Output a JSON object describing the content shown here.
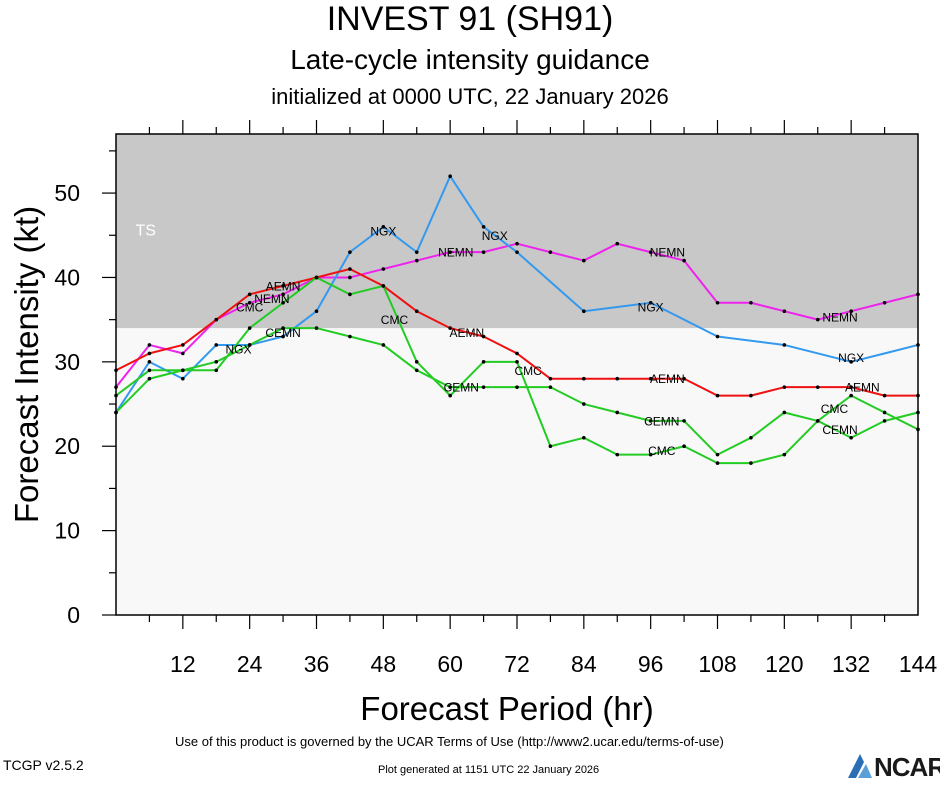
{
  "title": "INVEST 91 (SH91)",
  "subtitle": "Late-cycle intensity guidance",
  "init_line": "initialized at 0000 UTC, 22 January 2026",
  "footer": {
    "terms": "Use of this product is governed by the UCAR Terms of Use (http://www2.ucar.edu/terms-of-use)",
    "generated": "Plot generated at 1151 UTC   22 January 2026",
    "version": "TCGP v2.5.2",
    "logo_text": "NCAR"
  },
  "chart_data": {
    "type": "line",
    "title": "INVEST 91 (SH91)",
    "xlabel": "Forecast Period (hr)",
    "ylabel": "Forecast Intensity (kt)",
    "xlim": [
      0,
      144
    ],
    "ylim": [
      0,
      57
    ],
    "xticks": [
      12,
      24,
      36,
      48,
      60,
      72,
      84,
      96,
      108,
      120,
      132,
      144
    ],
    "yticks": [
      0,
      10,
      20,
      30,
      40,
      50
    ],
    "threshold_band": {
      "label": "TS",
      "from": 34,
      "to": 57,
      "color": "#c8c8c8"
    },
    "below_band_color": "#f8f8f8",
    "series": [
      {
        "name": "NEMN",
        "color": "#ee22ee",
        "x": [
          0,
          6,
          12,
          18,
          24,
          30,
          36,
          42,
          48,
          54,
          60,
          66,
          72,
          78,
          84,
          90,
          96,
          102,
          108,
          114,
          120,
          126,
          132,
          138,
          144
        ],
        "y": [
          27,
          32,
          31,
          35,
          37,
          38,
          40,
          40,
          41,
          42,
          43,
          43,
          44,
          43,
          42,
          44,
          43,
          42,
          37,
          37,
          36,
          35,
          36,
          37,
          38
        ]
      },
      {
        "name": "NGX",
        "color": "#3399ee",
        "x": [
          0,
          6,
          12,
          18,
          24,
          30,
          36,
          42,
          48,
          54,
          60,
          66,
          72,
          84,
          96,
          108,
          120,
          132,
          144
        ],
        "y": [
          24,
          30,
          28,
          32,
          32,
          33,
          36,
          43,
          46,
          43,
          52,
          46,
          43,
          36,
          37,
          33,
          32,
          30,
          32
        ]
      },
      {
        "name": "AEMN",
        "color": "#ee1111",
        "x": [
          0,
          6,
          12,
          18,
          24,
          30,
          36,
          42,
          48,
          54,
          60,
          66,
          72,
          78,
          84,
          90,
          96,
          102,
          108,
          114,
          120,
          126,
          132,
          138,
          144
        ],
        "y": [
          29,
          31,
          32,
          35,
          38,
          39,
          40,
          41,
          39,
          36,
          34,
          33,
          31,
          28,
          28,
          28,
          28,
          28,
          26,
          26,
          27,
          27,
          27,
          26,
          26
        ]
      },
      {
        "name": "CMC",
        "color": "#22cc22",
        "x": [
          0,
          6,
          12,
          18,
          24,
          30,
          36,
          42,
          48,
          54,
          60,
          66,
          72,
          78,
          84,
          90,
          96,
          102,
          108,
          114,
          120,
          126,
          132,
          138,
          144
        ],
        "y": [
          26,
          29,
          29,
          29,
          34,
          37,
          40,
          38,
          39,
          30,
          26,
          30,
          30,
          20,
          21,
          19,
          19,
          20,
          18,
          18,
          19,
          23,
          26,
          24,
          22
        ]
      },
      {
        "name": "CEMN",
        "color": "#22cc22",
        "x": [
          0,
          6,
          12,
          18,
          24,
          30,
          36,
          42,
          48,
          54,
          60,
          66,
          72,
          78,
          84,
          90,
          96,
          102,
          108,
          114,
          120,
          126,
          132,
          138,
          144
        ],
        "y": [
          24,
          28,
          29,
          30,
          32,
          34,
          34,
          33,
          32,
          29,
          27,
          27,
          27,
          27,
          25,
          24,
          23,
          23,
          19,
          21,
          24,
          23,
          21,
          23,
          24
        ]
      }
    ],
    "series_labels": [
      {
        "text": "NGX",
        "series": 1,
        "x": 48,
        "y": 45.5
      },
      {
        "text": "NGX",
        "series": 1,
        "x": 68,
        "y": 45
      },
      {
        "text": "NGX",
        "series": 1,
        "x": 96,
        "y": 36.5
      },
      {
        "text": "NGX",
        "series": 1,
        "x": 132,
        "y": 30.5
      },
      {
        "text": "NGX",
        "series": 1,
        "x": 22,
        "y": 31.5
      },
      {
        "text": "NEMN",
        "series": 0,
        "x": 61,
        "y": 43
      },
      {
        "text": "NEMN",
        "series": 0,
        "x": 99,
        "y": 43
      },
      {
        "text": "NEMN",
        "series": 0,
        "x": 130,
        "y": 35.3
      },
      {
        "text": "NEMN",
        "series": 0,
        "x": 28,
        "y": 37.5
      },
      {
        "text": "AEMN",
        "series": 2,
        "x": 30,
        "y": 39
      },
      {
        "text": "AEMN",
        "series": 2,
        "x": 63,
        "y": 33.5
      },
      {
        "text": "AEMN",
        "series": 2,
        "x": 99,
        "y": 28
      },
      {
        "text": "AEMN",
        "series": 2,
        "x": 134,
        "y": 27
      },
      {
        "text": "CMC",
        "series": 3,
        "x": 24,
        "y": 36.5
      },
      {
        "text": "CMC",
        "series": 3,
        "x": 50,
        "y": 35
      },
      {
        "text": "CMC",
        "series": 3,
        "x": 74,
        "y": 29
      },
      {
        "text": "CMC",
        "series": 3,
        "x": 98,
        "y": 19.5
      },
      {
        "text": "CMC",
        "series": 3,
        "x": 129,
        "y": 24.5
      },
      {
        "text": "CEMN",
        "series": 4,
        "x": 30,
        "y": 33.5
      },
      {
        "text": "CEMN",
        "series": 4,
        "x": 62,
        "y": 27
      },
      {
        "text": "CEMN",
        "series": 4,
        "x": 98,
        "y": 23
      },
      {
        "text": "CEMN",
        "series": 4,
        "x": 130,
        "y": 22
      }
    ]
  }
}
